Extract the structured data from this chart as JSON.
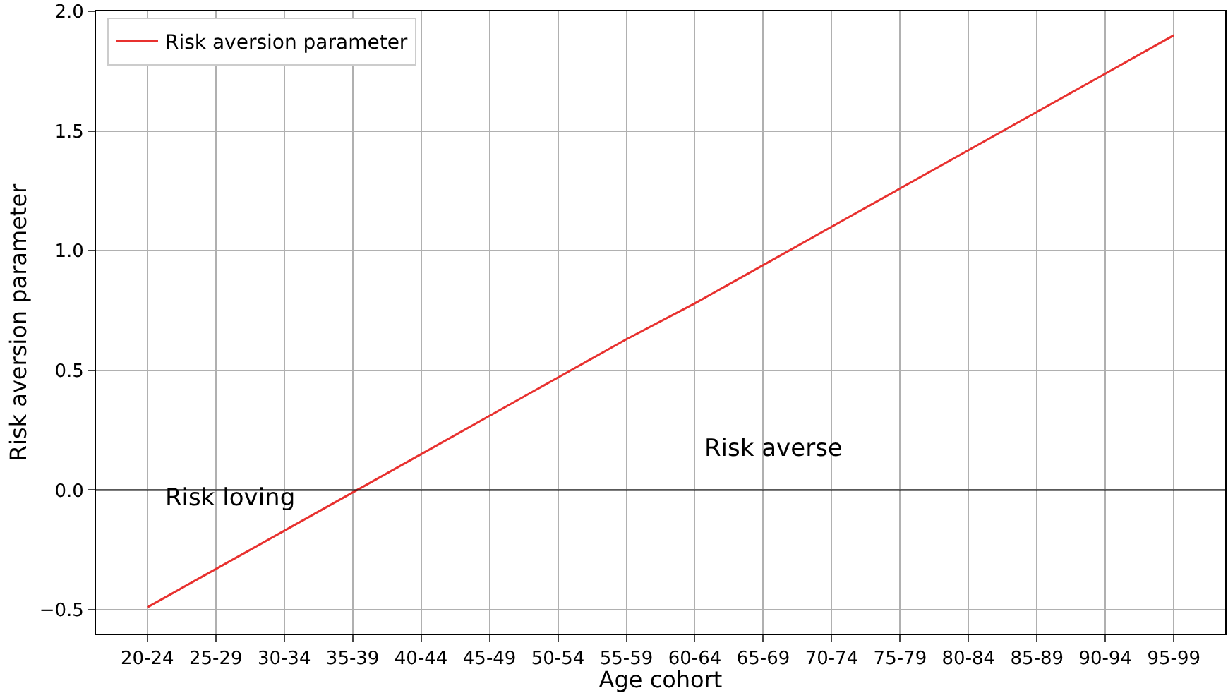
{
  "chart_data": {
    "type": "line",
    "xlabel": "Age cohort",
    "ylabel": "Risk aversion parameter",
    "categories": [
      "20-24",
      "25-29",
      "30-34",
      "35-39",
      "40-44",
      "45-49",
      "50-54",
      "55-59",
      "60-64",
      "65-69",
      "70-74",
      "75-79",
      "80-84",
      "85-89",
      "90-94",
      "95-99"
    ],
    "series": [
      {
        "name": "Risk aversion parameter",
        "color": "#e8312f",
        "values": [
          -0.49,
          -0.33,
          -0.17,
          -0.01,
          0.15,
          0.31,
          0.47,
          0.63,
          0.78,
          0.94,
          1.1,
          1.26,
          1.42,
          1.58,
          1.74,
          1.9
        ]
      }
    ],
    "ylim": [
      -0.6,
      2.0
    ],
    "yticks": [
      {
        "value": -0.5,
        "label": "−0.5"
      },
      {
        "value": 0,
        "label": "0.0"
      },
      {
        "value": 0.5,
        "label": "0.5"
      },
      {
        "value": 1.0,
        "label": "1.0"
      },
      {
        "value": 1.5,
        "label": "1.5"
      },
      {
        "value": 2.0,
        "label": "2.0"
      }
    ],
    "ref_lines": [
      {
        "axis": "y",
        "value": 0,
        "color": "#000000"
      }
    ],
    "annotations": [
      "Risk loving",
      "Risk averse"
    ],
    "grid": true,
    "legend": "top left",
    "marker": "none",
    "line_style": "solid"
  }
}
